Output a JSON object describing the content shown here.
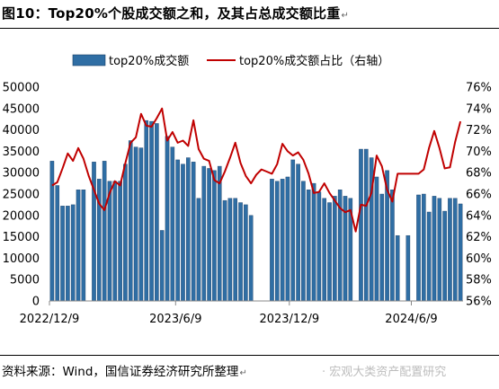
{
  "title": "图10：Top20%个股成交额之和，及其占总成交额比重",
  "return_mark": "↵",
  "source": "资料来源：Wind，国信证券经济研究所整理",
  "watermark": "· 宏观大类资产配置研究",
  "chart_data": {
    "type": "bar+line",
    "legend_position": "top",
    "grid": false,
    "series": [
      {
        "name": "top20%成交额",
        "type": "bar",
        "axis": "left",
        "color": "#2f6ea4",
        "values": [
          32700,
          27000,
          22200,
          22200,
          22500,
          26000,
          26000,
          null,
          32500,
          28500,
          32700,
          28000,
          28000,
          28000,
          32000,
          37500,
          36000,
          35800,
          42200,
          42000,
          41500,
          16500,
          38500,
          36000,
          33000,
          32000,
          33500,
          32500,
          24000,
          31500,
          31000,
          30500,
          31500,
          23500,
          24000,
          24000,
          23000,
          22500,
          20000,
          null,
          null,
          null,
          28500,
          28000,
          28500,
          29000,
          33000,
          32000,
          28000,
          26000,
          27500,
          25500,
          24000,
          23000,
          24500,
          26000,
          24500,
          24000,
          null,
          35500,
          35500,
          33500,
          29000,
          25000,
          30500,
          26000,
          15300,
          null,
          15300,
          null,
          24800,
          25000,
          20800,
          24500,
          24000,
          21000,
          24000,
          24000,
          22700
        ]
      },
      {
        "name": "top20%成交额占比（右轴）",
        "type": "line",
        "axis": "right",
        "color": "#c00000",
        "values": [
          66.8,
          67.1,
          68.4,
          69.8,
          69.1,
          70.3,
          69.3,
          67.7,
          66.4,
          65.1,
          64.5,
          66.1,
          67.2,
          66.8,
          68.9,
          70.8,
          71.3,
          73.5,
          72.4,
          72.3,
          73.1,
          74.0,
          71.0,
          71.8,
          70.8,
          71.0,
          70.5,
          72.9,
          70.2,
          69.3,
          69.1,
          67.3,
          67.0,
          68.1,
          69.4,
          70.8,
          68.9,
          67.7,
          67.0,
          67.8,
          68.3,
          68.1,
          67.9,
          68.8,
          70.7,
          70.0,
          69.6,
          69.9,
          69.2,
          67.9,
          66.1,
          66.2,
          67.0,
          66.1,
          65.4,
          64.7,
          64.3,
          64.5,
          62.5,
          65.0,
          64.9,
          66.1,
          69.6,
          68.6,
          66.4,
          65.3,
          67.9,
          67.9,
          67.9,
          67.9,
          67.9,
          68.3,
          70.3,
          71.9,
          70.3,
          68.4,
          68.5,
          70.9,
          72.8
        ]
      }
    ],
    "x_tick_labels": [
      "2022/12/9",
      "2023/6/9",
      "2023/12/9",
      "2024/6/9"
    ],
    "y_left": {
      "min": 0,
      "max": 50000,
      "ticks": [
        0,
        5000,
        10000,
        15000,
        20000,
        25000,
        30000,
        35000,
        40000,
        45000,
        50000
      ]
    },
    "y_right": {
      "min": 56,
      "max": 76,
      "ticks": [
        56,
        58,
        60,
        62,
        64,
        66,
        68,
        70,
        72,
        74,
        76
      ],
      "unit": "%"
    }
  }
}
